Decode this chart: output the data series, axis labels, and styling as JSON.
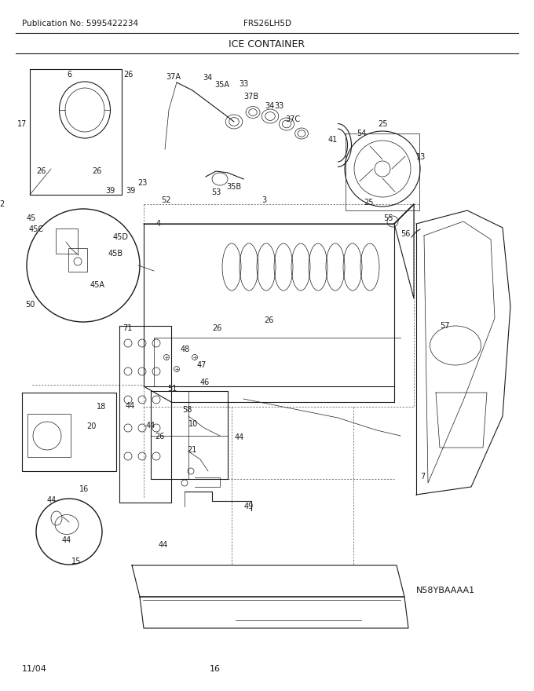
{
  "title": "ICE CONTAINER",
  "publication": "Publication No: 5995422234",
  "model": "FRS26LH5D",
  "model_code": "N58YBAAAA1",
  "date": "11/04",
  "page": "16",
  "bg_color": "#ffffff",
  "text_color": "#1a1a1a",
  "line_color": "#1a1a1a",
  "figsize": [
    6.8,
    8.8
  ],
  "dpi": 100,
  "labels": [
    [
      88,
      95,
      "6"
    ],
    [
      163,
      95,
      "26"
    ],
    [
      221,
      98,
      "37A"
    ],
    [
      264,
      99,
      "34"
    ],
    [
      283,
      108,
      "35A"
    ],
    [
      310,
      107,
      "33"
    ],
    [
      320,
      123,
      "37B"
    ],
    [
      343,
      135,
      "34"
    ],
    [
      355,
      135,
      "33"
    ],
    [
      373,
      152,
      "37C"
    ],
    [
      424,
      178,
      "41"
    ],
    [
      460,
      170,
      "54"
    ],
    [
      487,
      158,
      "25"
    ],
    [
      536,
      200,
      "13"
    ],
    [
      469,
      258,
      "25"
    ],
    [
      494,
      278,
      "55"
    ],
    [
      516,
      298,
      "56"
    ],
    [
      28,
      158,
      "17"
    ],
    [
      52,
      218,
      "26"
    ],
    [
      123,
      218,
      "26"
    ],
    [
      140,
      243,
      "39"
    ],
    [
      166,
      243,
      "39"
    ],
    [
      181,
      233,
      "23"
    ],
    [
      336,
      255,
      "3"
    ],
    [
      202,
      285,
      "4"
    ],
    [
      40,
      278,
      "45"
    ],
    [
      46,
      292,
      "45C"
    ],
    [
      154,
      302,
      "45D"
    ],
    [
      147,
      323,
      "45B"
    ],
    [
      124,
      363,
      "45A"
    ],
    [
      38,
      388,
      "50"
    ],
    [
      211,
      255,
      "52"
    ],
    [
      275,
      245,
      "53"
    ],
    [
      298,
      238,
      "35B"
    ],
    [
      342,
      408,
      "26"
    ],
    [
      276,
      418,
      "26"
    ],
    [
      162,
      418,
      "71"
    ],
    [
      236,
      445,
      "48"
    ],
    [
      257,
      465,
      "47"
    ],
    [
      261,
      487,
      "46"
    ],
    [
      219,
      495,
      "51"
    ],
    [
      238,
      522,
      "58"
    ],
    [
      166,
      517,
      "44"
    ],
    [
      192,
      542,
      "44"
    ],
    [
      203,
      556,
      "26"
    ],
    [
      246,
      540,
      "10"
    ],
    [
      305,
      557,
      "44"
    ],
    [
      244,
      573,
      "21"
    ],
    [
      129,
      518,
      "18"
    ],
    [
      116,
      543,
      "20"
    ],
    [
      107,
      623,
      "16"
    ],
    [
      66,
      637,
      "44"
    ],
    [
      85,
      688,
      "44"
    ],
    [
      208,
      694,
      "44"
    ],
    [
      317,
      645,
      "49"
    ],
    [
      97,
      715,
      "15"
    ],
    [
      566,
      415,
      "57"
    ],
    [
      538,
      607,
      "7"
    ],
    [
      2,
      260,
      "2"
    ]
  ]
}
